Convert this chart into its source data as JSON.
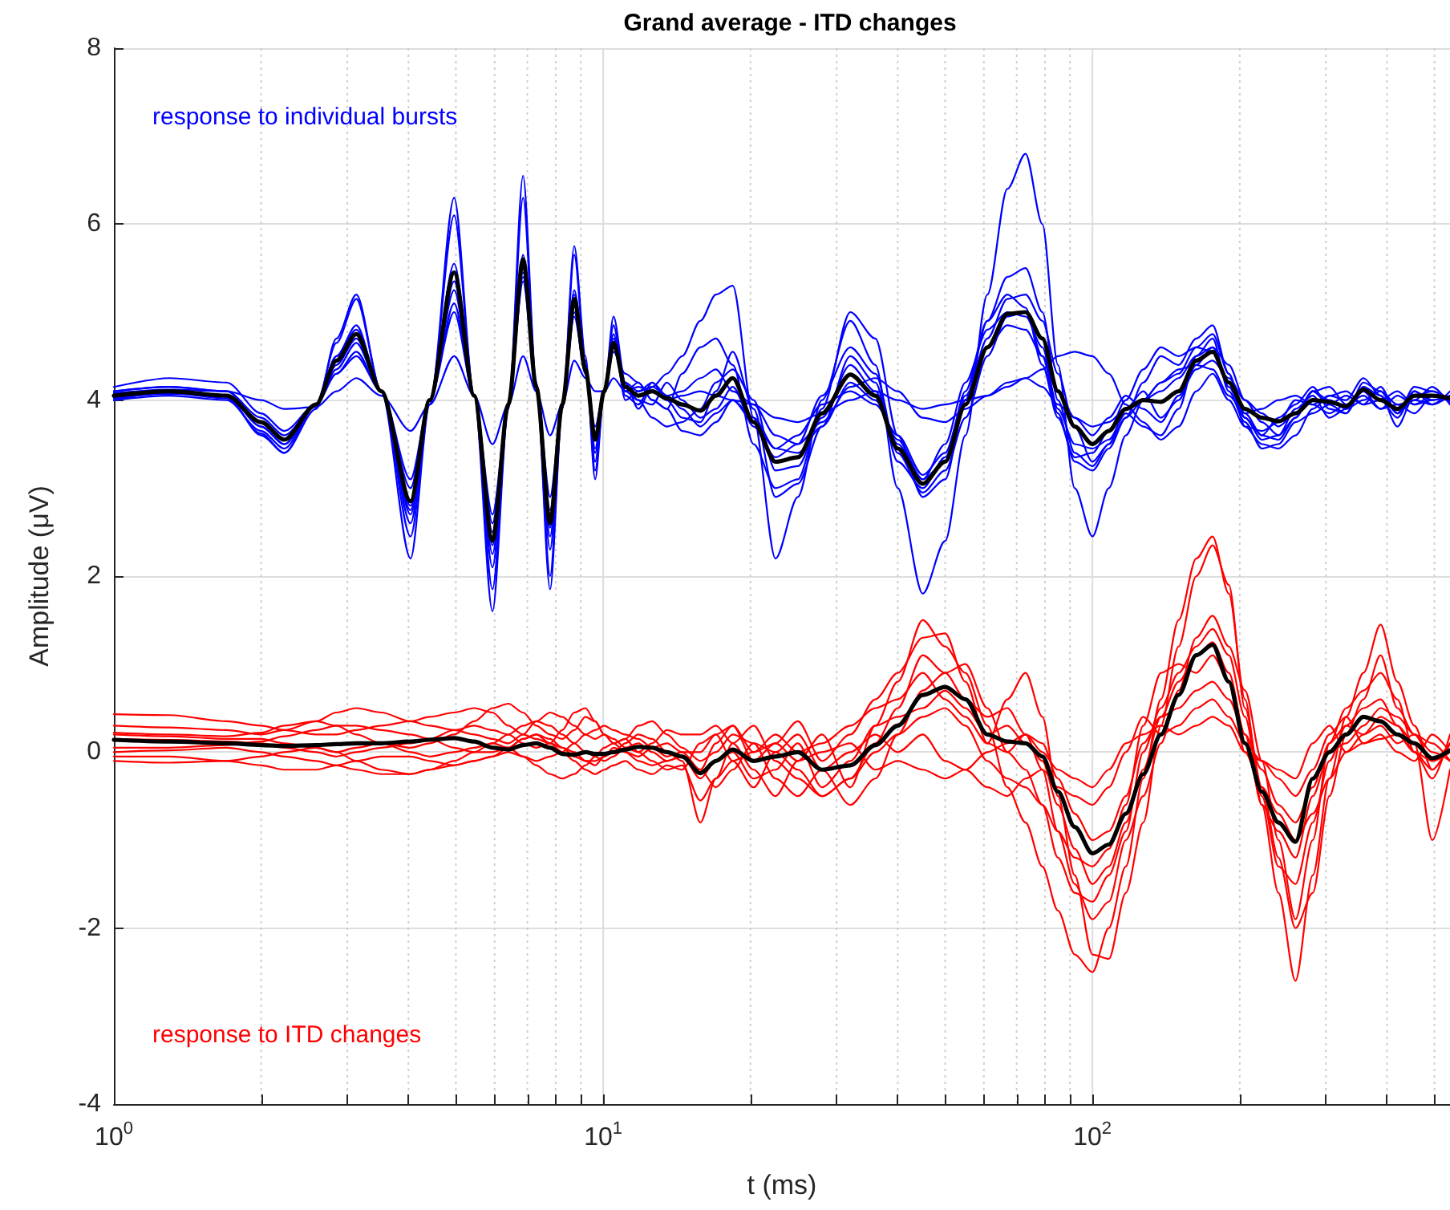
{
  "chart_data": {
    "type": "line",
    "title": "Grand average - ITD changes",
    "xlabel": "t (ms)",
    "ylabel": "Amplitude (μV)",
    "log": "x",
    "grid": true,
    "xlim": [
      1,
      538
    ],
    "xticks": [
      {
        "value": 1,
        "label": "10$^{0}$"
      },
      {
        "value": 2,
        "label": null
      },
      {
        "value": 3,
        "label": null
      },
      {
        "value": 4,
        "label": null
      },
      {
        "value": 5,
        "label": null
      },
      {
        "value": 6,
        "label": null
      },
      {
        "value": 7,
        "label": null
      },
      {
        "value": 8,
        "label": null
      },
      {
        "value": 9,
        "label": null
      },
      {
        "value": 10,
        "label": "10$^{1}$"
      },
      {
        "value": 20,
        "label": null
      },
      {
        "value": 30,
        "label": null
      },
      {
        "value": 40,
        "label": null
      },
      {
        "value": 50,
        "label": null
      },
      {
        "value": 60,
        "label": null
      },
      {
        "value": 70,
        "label": null
      },
      {
        "value": 80,
        "label": null
      },
      {
        "value": 90,
        "label": null
      },
      {
        "value": 100,
        "label": "10$^{2}$"
      },
      {
        "value": 200,
        "label": null
      },
      {
        "value": 300,
        "label": null
      },
      {
        "value": 400,
        "label": null
      },
      {
        "value": 500,
        "label": null
      }
    ],
    "ylim": [
      -4,
      8
    ],
    "yticks": [
      -4,
      -2,
      0,
      2,
      4,
      6,
      8
    ],
    "annotations": [
      "response to individual bursts",
      "response to ITD changes"
    ],
    "x": [
      1,
      1.3,
      1.7,
      2,
      2.23,
      2.59,
      2.85,
      3.13,
      3.52,
      4.04,
      4.42,
      4.96,
      5.45,
      5.94,
      6.4,
      6.86,
      7.3,
      7.79,
      8.25,
      8.73,
      9.2,
      9.63,
      10.05,
      10.5,
      11.1,
      11.8,
      12.6,
      13.5,
      14.5,
      15.8,
      17,
      18.4,
      20.3,
      22.5,
      25,
      28,
      32,
      36,
      40,
      45,
      50,
      55,
      61,
      67,
      73,
      79,
      85,
      92,
      100,
      108,
      117,
      127,
      138,
      150,
      163,
      176,
      190,
      205,
      222,
      240,
      260,
      282,
      305,
      330,
      358,
      388,
      420,
      455,
      495,
      538
    ],
    "series": [
      {
        "color": "#0000ff",
        "values": [
          4.0,
          4.1,
          4.05,
          3.6,
          3.4,
          3.9,
          4.7,
          5.2,
          4.1,
          2.2,
          3.95,
          6.3,
          4.05,
          1.6,
          3.9,
          6.55,
          4.2,
          1.85,
          3.9,
          5.75,
          4.5,
          3.1,
          4.1,
          4.95,
          4.2,
          3.9,
          4.15,
          4.3,
          4.5,
          4.9,
          5.2,
          5.3,
          3.8,
          2.2,
          2.9,
          4.0,
          4.9,
          4.4,
          3.0,
          1.8,
          2.4,
          3.6,
          5.2,
          6.4,
          6.8,
          6.0,
          4.4,
          3.0,
          2.45,
          3.0,
          3.6,
          4.0,
          4.2,
          4.3,
          4.6,
          4.75,
          4.3,
          3.8,
          3.6,
          3.55,
          3.8,
          4.1,
          3.95,
          3.85,
          4.2,
          4.1,
          3.85,
          4.1,
          4.0,
          4.05
        ]
      },
      {
        "color": "#0000ff",
        "values": [
          4.02,
          4.08,
          4.02,
          3.62,
          3.4,
          3.95,
          4.65,
          5.15,
          4.1,
          2.45,
          3.95,
          6.1,
          4.05,
          1.85,
          3.9,
          6.3,
          4.2,
          2.0,
          3.9,
          5.65,
          4.45,
          3.2,
          4.1,
          4.85,
          4.1,
          4.2,
          4.0,
          3.9,
          4.3,
          4.6,
          4.7,
          4.4,
          3.5,
          3.0,
          3.1,
          3.9,
          5.0,
          4.7,
          3.6,
          2.9,
          3.1,
          4.0,
          4.9,
          5.4,
          5.5,
          5.0,
          4.0,
          3.4,
          3.25,
          3.5,
          3.8,
          4.2,
          4.5,
          4.4,
          4.7,
          4.85,
          4.3,
          3.7,
          3.5,
          3.45,
          3.6,
          3.9,
          4.05,
          4.0,
          4.25,
          4.05,
          3.85,
          4.15,
          4.1,
          4.0
        ]
      },
      {
        "color": "#0000ff",
        "values": [
          4.05,
          4.1,
          4.05,
          3.7,
          3.5,
          3.95,
          4.5,
          4.8,
          4.1,
          2.6,
          4.0,
          5.55,
          4.05,
          2.1,
          3.95,
          5.65,
          4.15,
          2.3,
          3.95,
          5.25,
          4.4,
          3.3,
          4.1,
          4.75,
          4.05,
          3.95,
          4.2,
          4.0,
          3.8,
          3.75,
          4.1,
          4.55,
          3.9,
          2.9,
          3.05,
          3.7,
          4.5,
          4.2,
          3.3,
          3.0,
          3.35,
          4.0,
          4.7,
          5.15,
          5.2,
          4.9,
          4.3,
          3.7,
          3.3,
          3.5,
          3.9,
          4.1,
          3.8,
          4.0,
          4.4,
          4.6,
          4.4,
          4.0,
          3.75,
          3.6,
          3.8,
          4.1,
          4.15,
          3.95,
          4.1,
          3.9,
          3.95,
          4.0,
          4.15,
          3.95
        ]
      },
      {
        "color": "#0000ff",
        "values": [
          4.1,
          4.15,
          4.1,
          3.8,
          3.6,
          3.95,
          4.4,
          4.7,
          4.1,
          2.7,
          4.0,
          5.35,
          4.05,
          2.25,
          3.95,
          5.5,
          4.15,
          2.45,
          3.95,
          5.1,
          4.35,
          3.4,
          4.1,
          4.6,
          4.1,
          4.0,
          3.8,
          3.7,
          3.75,
          3.9,
          4.2,
          4.35,
          4.0,
          3.2,
          3.25,
          3.8,
          4.4,
          4.1,
          3.5,
          3.1,
          3.5,
          4.2,
          4.8,
          5.0,
          4.95,
          4.6,
          3.9,
          3.5,
          3.45,
          3.55,
          3.85,
          3.7,
          3.6,
          3.9,
          4.5,
          4.7,
          4.1,
          3.75,
          3.45,
          3.5,
          3.75,
          3.85,
          3.95,
          4.05,
          3.95,
          4.15,
          3.85,
          4.0,
          3.95,
          4.1
        ]
      },
      {
        "color": "#0000ff",
        "values": [
          4.15,
          4.25,
          4.2,
          3.85,
          3.65,
          3.95,
          4.35,
          4.65,
          4.1,
          2.8,
          4.0,
          5.25,
          4.05,
          2.6,
          3.95,
          5.4,
          4.15,
          2.75,
          3.95,
          5.0,
          4.3,
          3.55,
          4.1,
          4.55,
          4.3,
          4.2,
          4.0,
          3.9,
          3.65,
          3.6,
          3.75,
          4.0,
          3.8,
          3.45,
          3.4,
          3.7,
          4.2,
          4.0,
          3.55,
          3.1,
          3.3,
          4.1,
          4.9,
          5.2,
          5.05,
          4.4,
          3.8,
          3.35,
          3.4,
          3.65,
          4.0,
          4.35,
          4.6,
          4.5,
          4.6,
          4.55,
          4.2,
          3.85,
          3.6,
          3.8,
          3.95,
          4.15,
          3.9,
          3.85,
          4.15,
          4.05,
          3.7,
          4.05,
          4.1,
          4.0
        ]
      },
      {
        "color": "#0000ff",
        "values": [
          4.08,
          4.12,
          4.1,
          3.75,
          3.55,
          3.95,
          4.3,
          4.55,
          4.1,
          3.0,
          4.0,
          5.1,
          4.05,
          2.7,
          3.95,
          5.35,
          4.15,
          2.9,
          3.95,
          5.2,
          4.35,
          3.7,
          4.1,
          4.7,
          4.0,
          4.1,
          4.15,
          4.05,
          4.1,
          4.25,
          4.35,
          4.1,
          3.95,
          3.6,
          3.5,
          3.75,
          4.15,
          4.25,
          4.1,
          3.8,
          3.75,
          3.9,
          4.05,
          4.15,
          4.25,
          4.35,
          4.5,
          4.55,
          4.5,
          4.3,
          3.95,
          3.75,
          3.55,
          3.7,
          4.1,
          4.3,
          4.0,
          3.7,
          3.65,
          3.75,
          4.0,
          3.95,
          3.85,
          3.95,
          4.05,
          3.9,
          4.05,
          3.95,
          4.0,
          4.05
        ]
      },
      {
        "color": "#0000ff",
        "values": [
          4.0,
          4.05,
          4.0,
          3.65,
          3.45,
          3.95,
          4.3,
          4.5,
          4.1,
          3.1,
          4.0,
          5.0,
          4.05,
          2.5,
          3.95,
          5.45,
          4.15,
          2.55,
          3.95,
          4.95,
          4.3,
          3.45,
          4.1,
          4.65,
          4.15,
          4.0,
          3.95,
          4.2,
          4.0,
          3.8,
          3.9,
          4.15,
          3.7,
          3.35,
          3.5,
          4.05,
          4.6,
          4.3,
          3.4,
          2.95,
          3.2,
          3.8,
          4.5,
          4.95,
          5.0,
          4.5,
          3.85,
          3.3,
          3.2,
          3.45,
          3.8,
          4.0,
          4.1,
          4.25,
          4.5,
          4.6,
          4.15,
          3.8,
          3.55,
          3.6,
          3.9,
          4.05,
          3.8,
          3.9,
          4.0,
          4.1,
          3.95,
          3.85,
          4.05,
          4.0
        ]
      },
      {
        "color": "#0000ff",
        "values": [
          4.03,
          4.07,
          4.05,
          3.7,
          3.5,
          3.95,
          4.5,
          4.85,
          4.1,
          2.75,
          4.0,
          5.45,
          4.05,
          2.35,
          3.95,
          5.6,
          4.15,
          2.65,
          3.95,
          5.15,
          4.35,
          3.6,
          4.1,
          4.6,
          4.2,
          4.1,
          4.2,
          4.05,
          3.9,
          3.7,
          3.85,
          4.0,
          3.75,
          3.45,
          3.6,
          3.95,
          4.1,
          3.95,
          3.6,
          3.15,
          3.4,
          4.05,
          4.6,
          4.85,
          4.8,
          4.5,
          4.1,
          3.8,
          3.6,
          3.8,
          4.05,
          3.9,
          3.75,
          4.05,
          4.35,
          4.45,
          4.25,
          4.0,
          3.85,
          3.7,
          3.85,
          4.1,
          4.0,
          3.9,
          4.1,
          4.0,
          3.8,
          4.1,
          3.95,
          4.05
        ]
      },
      {
        "color": "#0000ff",
        "values": [
          4.1,
          4.15,
          4.1,
          4.0,
          3.9,
          3.92,
          4.1,
          4.25,
          4.05,
          3.65,
          3.95,
          4.5,
          4.05,
          3.5,
          3.95,
          4.5,
          4.1,
          3.6,
          3.95,
          4.45,
          4.25,
          4.1,
          4.1,
          4.25,
          4.1,
          4.15,
          4.1,
          4.0,
          4.05,
          4.1,
          4.05,
          4.0,
          3.95,
          3.8,
          3.75,
          3.85,
          4.0,
          4.1,
          4.0,
          3.9,
          3.95,
          4.0,
          4.05,
          4.2,
          4.25,
          4.15,
          3.95,
          3.8,
          3.7,
          3.75,
          3.9,
          4.0,
          4.2,
          4.35,
          4.4,
          4.35,
          4.05,
          3.85,
          3.9,
          4.0,
          4.05,
          3.95,
          4.05,
          4.1,
          3.95,
          4.0,
          4.1,
          3.95,
          4.05,
          3.98
        ]
      },
      {
        "color": "#000000",
        "values": [
          4.05,
          4.1,
          4.05,
          3.75,
          3.55,
          3.95,
          4.45,
          4.75,
          4.1,
          2.85,
          4.0,
          5.45,
          4.05,
          2.4,
          3.95,
          5.6,
          4.15,
          2.6,
          3.95,
          5.15,
          4.35,
          3.55,
          4.1,
          4.65,
          4.15,
          4.05,
          4.1,
          4.02,
          3.95,
          3.88,
          4.05,
          4.25,
          3.75,
          3.3,
          3.35,
          3.85,
          4.29,
          4.05,
          3.45,
          3.05,
          3.3,
          3.95,
          4.6,
          4.98,
          5.0,
          4.7,
          4.1,
          3.7,
          3.5,
          3.65,
          3.9,
          4.0,
          3.98,
          4.1,
          4.45,
          4.55,
          4.2,
          3.9,
          3.8,
          3.76,
          3.85,
          4.0,
          3.98,
          3.93,
          4.12,
          4.0,
          3.9,
          4.05,
          4.05,
          4.02
        ]
      },
      {
        "color": "#ff0000",
        "values": [
          0.43,
          0.42,
          0.35,
          0.3,
          0.25,
          0.2,
          0.2,
          0.25,
          0.3,
          0.35,
          0.4,
          0.45,
          0.5,
          0.45,
          0.3,
          0.2,
          0.15,
          0.1,
          0.05,
          0.0,
          -0.1,
          -0.1,
          -0.05,
          0.0,
          0.1,
          0.2,
          0.15,
          0.0,
          -0.1,
          -0.8,
          -0.3,
          0.1,
          -0.2,
          -0.5,
          -0.1,
          0.2,
          -0.4,
          0.3,
          0.8,
          1.5,
          1.2,
          0.9,
          0.3,
          -0.4,
          -0.8,
          -1.3,
          -1.8,
          -2.3,
          -2.5,
          -2.0,
          -1.3,
          -0.3,
          0.6,
          1.5,
          2.2,
          2.45,
          1.8,
          0.6,
          -0.6,
          -1.6,
          -2.6,
          -1.4,
          -0.3,
          0.4,
          0.9,
          1.45,
          0.8,
          0.3,
          -0.2,
          0.1
        ]
      },
      {
        "color": "#ff0000",
        "values": [
          0.3,
          0.28,
          0.25,
          0.2,
          0.25,
          0.35,
          0.45,
          0.5,
          0.45,
          0.35,
          0.3,
          0.25,
          0.2,
          0.15,
          0.1,
          0.2,
          0.35,
          0.45,
          0.4,
          0.3,
          0.2,
          0.15,
          0.2,
          0.1,
          0.0,
          -0.05,
          0.05,
          0.1,
          0.0,
          -0.2,
          0.1,
          0.3,
          -0.1,
          0.1,
          0.35,
          -0.1,
          0.2,
          0.6,
          0.9,
          1.3,
          1.35,
          0.8,
          0.1,
          0.6,
          0.9,
          0.4,
          -0.5,
          -1.4,
          -2.3,
          -2.35,
          -1.6,
          -0.8,
          0.3,
          1.2,
          2.0,
          2.35,
          1.9,
          0.5,
          -0.4,
          -1.2,
          -2.0,
          -1.6,
          -0.5,
          0.2,
          0.6,
          1.1,
          0.5,
          0.2,
          0.1,
          -0.1
        ]
      },
      {
        "color": "#ff0000",
        "values": [
          0.22,
          0.2,
          0.18,
          0.22,
          0.3,
          0.35,
          0.3,
          0.2,
          0.1,
          0.05,
          0.1,
          0.2,
          0.35,
          0.5,
          0.55,
          0.45,
          0.3,
          0.2,
          0.15,
          0.25,
          0.4,
          0.35,
          0.2,
          0.15,
          0.05,
          0.0,
          0.1,
          0.25,
          0.2,
          0.2,
          0.3,
          0.1,
          0.3,
          -0.1,
          -0.3,
          -0.5,
          -0.3,
          0.1,
          0.5,
          1.1,
          0.9,
          0.6,
          0.4,
          0.5,
          0.2,
          -0.2,
          -0.9,
          -1.5,
          -1.9,
          -1.7,
          -1.0,
          -0.5,
          0.1,
          0.7,
          1.3,
          1.55,
          1.2,
          0.7,
          -0.1,
          -1.0,
          -1.9,
          -1.0,
          0.1,
          0.5,
          0.7,
          0.9,
          0.6,
          0.0,
          -0.3,
          0.2
        ]
      },
      {
        "color": "#ff0000",
        "values": [
          0.15,
          0.14,
          0.12,
          0.1,
          0.05,
          0.0,
          -0.05,
          0.0,
          0.05,
          0.1,
          0.15,
          0.25,
          0.3,
          0.25,
          0.2,
          0.1,
          0.05,
          0.1,
          0.25,
          0.45,
          0.5,
          0.35,
          0.2,
          0.1,
          0.15,
          0.3,
          0.35,
          0.2,
          0.05,
          -0.1,
          0.0,
          0.2,
          0.1,
          0.0,
          0.2,
          -0.2,
          -0.6,
          -0.3,
          0.2,
          0.7,
          0.9,
          1.0,
          0.5,
          0.0,
          -0.2,
          -0.6,
          -1.2,
          -1.6,
          -1.7,
          -1.4,
          -0.9,
          0.0,
          0.5,
          0.9,
          1.2,
          1.4,
          1.1,
          0.4,
          -0.5,
          -1.3,
          -1.5,
          -0.8,
          -0.1,
          0.3,
          0.5,
          0.6,
          0.3,
          0.0,
          -0.1,
          0.0
        ]
      },
      {
        "color": "#ff0000",
        "values": [
          0.05,
          0.05,
          0.08,
          0.12,
          0.18,
          0.25,
          0.3,
          0.3,
          0.25,
          0.2,
          0.15,
          0.05,
          0.0,
          0.0,
          0.05,
          0.15,
          0.2,
          0.15,
          0.05,
          -0.05,
          -0.1,
          -0.15,
          -0.05,
          0.05,
          0.0,
          -0.1,
          -0.15,
          -0.1,
          -0.05,
          -0.3,
          -0.1,
          0.0,
          -0.3,
          -0.2,
          0.1,
          -0.4,
          -0.1,
          0.3,
          0.4,
          0.5,
          0.7,
          0.5,
          0.2,
          0.3,
          0.1,
          -0.1,
          -0.6,
          -1.1,
          -1.5,
          -1.3,
          -0.8,
          -0.2,
          0.4,
          0.8,
          1.1,
          1.25,
          0.9,
          0.2,
          -0.6,
          -0.9,
          -1.2,
          -0.5,
          0.0,
          0.1,
          0.3,
          0.5,
          0.4,
          0.2,
          -0.1,
          0.1
        ]
      },
      {
        "color": "#ff0000",
        "values": [
          -0.05,
          -0.05,
          -0.1,
          -0.15,
          -0.2,
          -0.2,
          -0.15,
          -0.1,
          -0.05,
          -0.05,
          -0.1,
          -0.15,
          -0.1,
          -0.05,
          0.0,
          -0.05,
          -0.15,
          -0.25,
          -0.3,
          -0.25,
          -0.15,
          -0.05,
          0.05,
          0.1,
          0.15,
          0.0,
          -0.1,
          -0.2,
          -0.15,
          -0.55,
          -0.3,
          -0.1,
          -0.4,
          0.0,
          -0.2,
          -0.5,
          -0.3,
          0.0,
          0.2,
          0.4,
          0.5,
          0.3,
          -0.1,
          -0.3,
          -0.4,
          -0.6,
          -0.9,
          -1.2,
          -1.3,
          -1.1,
          -0.6,
          0.3,
          0.9,
          1.0,
          0.9,
          1.1,
          0.8,
          0.0,
          -0.4,
          -0.7,
          -1.0,
          -0.7,
          -0.3,
          0.0,
          0.2,
          0.4,
          0.3,
          0.1,
          -1.0,
          -0.2
        ]
      },
      {
        "color": "#ff0000",
        "values": [
          -0.1,
          -0.12,
          -0.1,
          -0.05,
          0.0,
          0.05,
          0.0,
          -0.1,
          -0.2,
          -0.25,
          -0.2,
          -0.15,
          -0.1,
          -0.05,
          0.05,
          0.15,
          0.2,
          0.1,
          0.0,
          -0.1,
          -0.2,
          -0.25,
          -0.2,
          -0.15,
          -0.1,
          -0.2,
          -0.25,
          -0.15,
          -0.2,
          0.1,
          0.2,
          -0.1,
          0.0,
          0.2,
          0.0,
          0.1,
          0.3,
          0.5,
          0.6,
          0.9,
          0.6,
          0.4,
          0.1,
          0.0,
          0.2,
          0.1,
          -0.3,
          -0.7,
          -1.0,
          -0.9,
          -0.5,
          0.1,
          0.4,
          0.5,
          0.7,
          0.8,
          0.6,
          0.2,
          -0.2,
          -0.6,
          -0.8,
          -0.4,
          0.1,
          0.3,
          0.2,
          0.3,
          0.1,
          0.2,
          0.0,
          -0.1
        ]
      },
      {
        "color": "#ff0000",
        "values": [
          0.0,
          0.02,
          0.05,
          0.0,
          -0.05,
          -0.1,
          -0.15,
          -0.2,
          -0.25,
          -0.25,
          -0.2,
          -0.1,
          0.0,
          0.1,
          0.2,
          0.3,
          0.35,
          0.3,
          0.2,
          0.1,
          0.0,
          -0.05,
          -0.1,
          -0.05,
          0.05,
          0.1,
          0.0,
          -0.1,
          -0.05,
          -0.2,
          -0.4,
          -0.2,
          0.1,
          -0.3,
          -0.5,
          -0.2,
          0.0,
          0.2,
          0.0,
          0.2,
          -0.1,
          -0.2,
          -0.4,
          -0.5,
          -0.3,
          -0.2,
          -0.4,
          -0.5,
          -0.6,
          -0.4,
          0.0,
          0.4,
          0.2,
          0.3,
          0.5,
          0.6,
          0.4,
          0.1,
          -0.1,
          -0.3,
          -0.5,
          -0.2,
          0.2,
          0.4,
          0.1,
          0.2,
          0.0,
          -0.1,
          0.2,
          0.0
        ]
      },
      {
        "color": "#ff0000",
        "values": [
          0.2,
          0.18,
          0.15,
          0.15,
          0.1,
          0.05,
          0.0,
          0.05,
          0.1,
          0.0,
          -0.05,
          0.0,
          0.05,
          0.1,
          0.05,
          -0.05,
          -0.1,
          -0.05,
          0.0,
          0.1,
          0.2,
          0.25,
          0.3,
          0.25,
          0.2,
          0.15,
          0.05,
          -0.05,
          0.0,
          0.0,
          0.2,
          0.3,
          0.0,
          0.1,
          -0.1,
          0.0,
          0.1,
          -0.2,
          -0.1,
          -0.2,
          -0.3,
          -0.2,
          0.0,
          0.1,
          0.2,
          0.0,
          -0.2,
          -0.3,
          -0.4,
          -0.2,
          0.1,
          0.2,
          0.3,
          0.2,
          0.3,
          0.4,
          0.3,
          0.0,
          -0.1,
          -0.2,
          -0.3,
          0.1,
          0.3,
          0.0,
          0.1,
          0.15,
          0.2,
          0.0,
          -0.2,
          0.1
        ]
      },
      {
        "color": "#000000",
        "values": [
          0.14,
          0.12,
          0.1,
          0.08,
          0.07,
          0.08,
          0.09,
          0.1,
          0.1,
          0.12,
          0.14,
          0.16,
          0.12,
          0.05,
          0.03,
          0.08,
          0.1,
          0.05,
          -0.02,
          -0.03,
          0.0,
          -0.02,
          -0.02,
          0.0,
          0.03,
          0.06,
          0.05,
          0.0,
          -0.05,
          -0.24,
          -0.1,
          0.03,
          -0.1,
          -0.05,
          0.0,
          -0.2,
          -0.15,
          0.08,
          0.3,
          0.65,
          0.74,
          0.6,
          0.2,
          0.12,
          0.1,
          -0.05,
          -0.45,
          -0.85,
          -1.15,
          -1.05,
          -0.7,
          -0.25,
          0.2,
          0.65,
          1.1,
          1.22,
          0.8,
          0.1,
          -0.45,
          -0.8,
          -1.02,
          -0.3,
          0.0,
          0.2,
          0.4,
          0.35,
          0.2,
          0.1,
          -0.07,
          0.02
        ]
      }
    ]
  }
}
